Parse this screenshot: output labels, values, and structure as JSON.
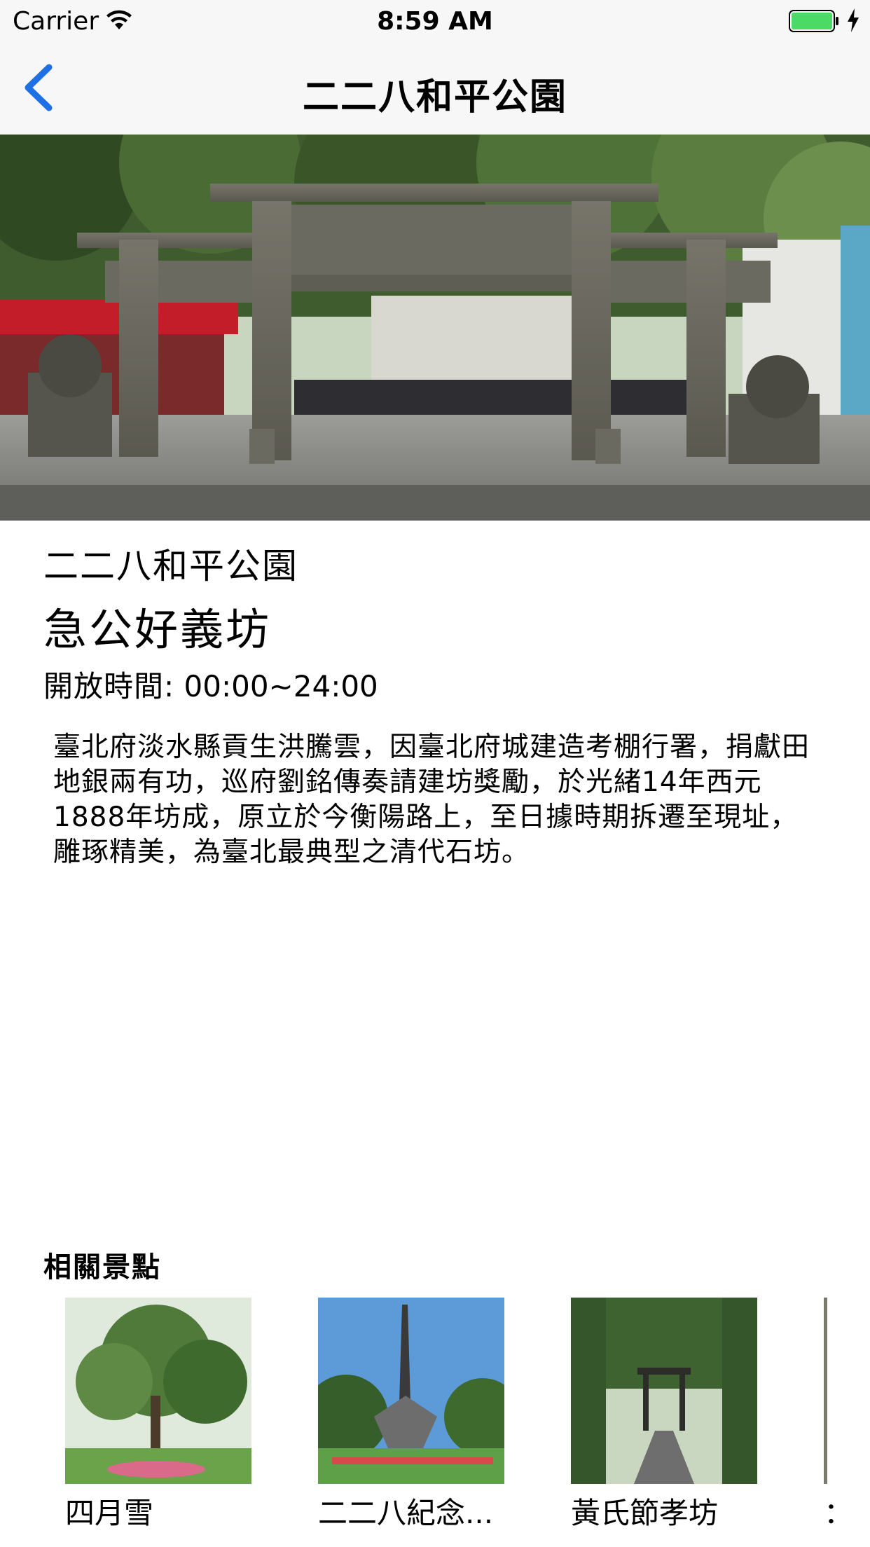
{
  "status_bar": {
    "carrier": "Carrier",
    "time": "8:59 AM",
    "icons": [
      "wifi-icon",
      "battery-icon",
      "charging-icon"
    ],
    "battery_color": "#4cd964"
  },
  "nav": {
    "title": "二二八和平公園",
    "back_icon": "chevron-left-icon",
    "accent_color": "#1f6fe5"
  },
  "detail": {
    "park_name": "二二八和平公園",
    "spot_title": "急公好義坊",
    "hours_label": "開放時間:",
    "hours_value": "00:00~24:00",
    "description": "臺北府淡水縣貢生洪騰雲，因臺北府城建造考棚行署，捐獻田地銀兩有功，巡府劉銘傳奏請建坊獎勵，於光緒14年西元1888年坊成，原立於今衡陽路上，至日據時期拆遷至現址，雕琢精美，為臺北最典型之清代石坊。"
  },
  "related": {
    "heading": "相關景點",
    "items": [
      {
        "label": "四月雪"
      },
      {
        "label": "二二八紀念..."
      },
      {
        "label": "黃氏節孝坊"
      },
      {
        "label": "："
      }
    ]
  }
}
